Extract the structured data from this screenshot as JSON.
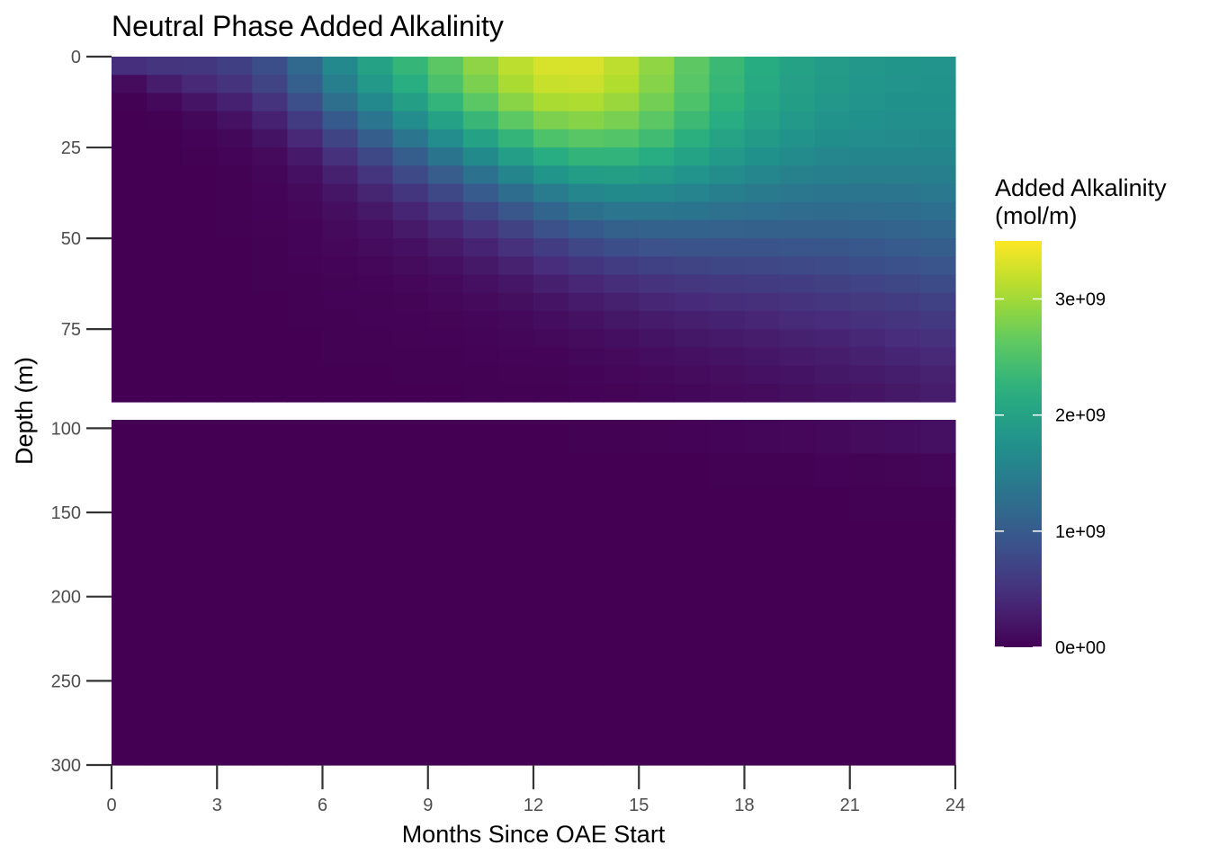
{
  "chart_data": {
    "type": "heatmap",
    "title": "Neutral Phase Added Alkalinity",
    "xlabel": "Months Since OAE Start",
    "ylabel": "Depth (m)",
    "xlim": [
      0,
      24
    ],
    "x_ticks": [
      "0",
      "3",
      "6",
      "9",
      "12",
      "15",
      "18",
      "21",
      "24"
    ],
    "x_tick_values": [
      0,
      3,
      6,
      9,
      12,
      15,
      18,
      21,
      24
    ],
    "panels": [
      {
        "name": "upper",
        "depth_range": [
          0,
          95
        ],
        "y_ticks": [
          "0",
          "25",
          "50",
          "75"
        ],
        "y_tick_values": [
          0,
          25,
          50,
          75
        ],
        "depth_step_m": 5
      },
      {
        "name": "lower",
        "depth_range": [
          95,
          300
        ],
        "y_ticks": [
          "100",
          "150",
          "200",
          "250",
          "300"
        ],
        "y_tick_values": [
          100,
          150,
          200,
          250,
          300
        ],
        "depth_bounds_m": [
          95,
          115,
          135,
          155,
          175,
          300
        ]
      }
    ],
    "x_bins_months": 24,
    "legend": {
      "title_line1": "Added Alkalinity",
      "title_line2": "(mol/m)",
      "placement": "right",
      "colormap": "viridis",
      "range": [
        0,
        3500000000
      ],
      "breaks": [
        0,
        1000000000,
        2000000000,
        3000000000
      ],
      "break_labels": [
        "0e+00",
        "1e+09",
        "2e+09",
        "3e+09"
      ]
    },
    "units": "mol/m",
    "approximate_field_description": "Surface peak ~3.5e9 mol/m around month 11-12 at 0-5 m; values diffuse downward over time reaching ~1e9 at 90-95 m by month 24; below 100 m values remain below ~0.6e9."
  }
}
